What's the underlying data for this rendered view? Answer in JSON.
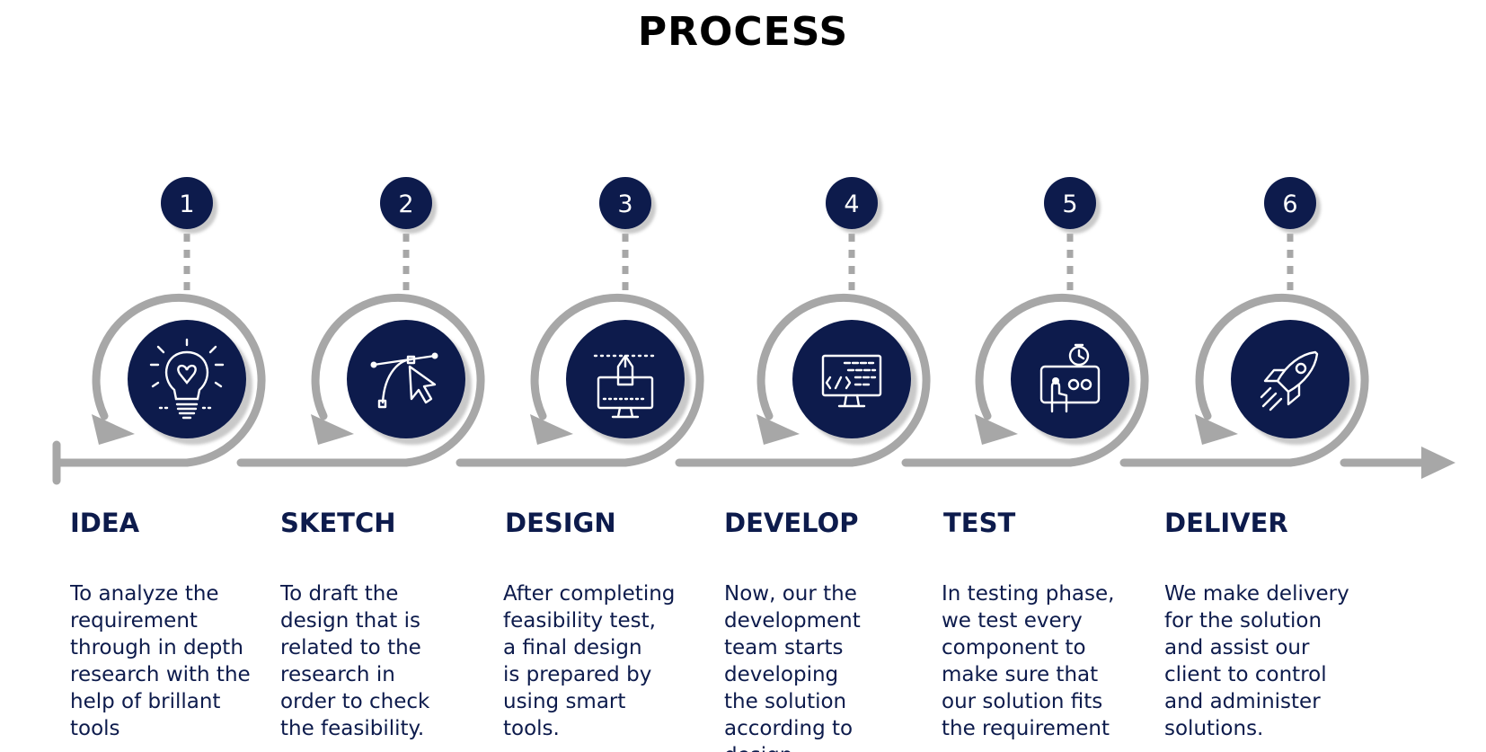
{
  "title": "PROCESS",
  "colors": {
    "navy": "#0d1b4c",
    "gray": "#a7a7a7",
    "shadow": "#c9c9c9",
    "icon": "#ffffff"
  },
  "steps": [
    {
      "number": "1",
      "title": "IDEA",
      "icon": "lightbulb-icon",
      "description": [
        "To analyze the",
        "requirement",
        "through in depth",
        "research with the",
        "help of brillant",
        "tools"
      ]
    },
    {
      "number": "2",
      "title": "SKETCH",
      "icon": "pen-tool-cursor-icon",
      "description": [
        "To draft the",
        "design that is",
        "related to the",
        "research in",
        "order to check",
        "the feasibility."
      ]
    },
    {
      "number": "3",
      "title": "DESIGN",
      "icon": "design-monitor-icon",
      "description": [
        "After completing",
        "feasibility test,",
        "a final design",
        "is prepared by",
        "using smart",
        "tools."
      ]
    },
    {
      "number": "4",
      "title": "DEVELOP",
      "icon": "code-monitor-icon",
      "description": [
        "Now, our the",
        "development",
        "team starts",
        "developing",
        "the solution",
        "according to",
        "design"
      ]
    },
    {
      "number": "5",
      "title": "TEST",
      "icon": "testing-screen-icon",
      "description": [
        "In testing phase,",
        "we test every",
        "component to",
        "make sure that",
        "our solution fits",
        "the requirement"
      ]
    },
    {
      "number": "6",
      "title": "DELIVER",
      "icon": "rocket-icon",
      "description": [
        "We make delivery",
        "for the solution",
        "and assist our",
        "client to control",
        "and administer",
        "solutions."
      ]
    }
  ]
}
